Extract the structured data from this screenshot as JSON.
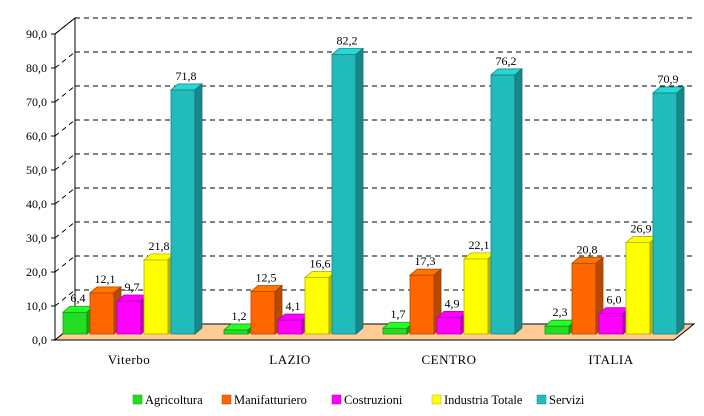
{
  "chart_data": {
    "type": "bar",
    "categories": [
      "Viterbo",
      "LAZIO",
      "CENTRO",
      "ITALIA"
    ],
    "series": [
      {
        "name": "Agricoltura",
        "color": "#22dd22",
        "values": [
          6.4,
          1.2,
          1.7,
          2.3
        ]
      },
      {
        "name": "Manifatturiero",
        "color": "#ff6600",
        "values": [
          12.1,
          12.5,
          17.3,
          20.8
        ]
      },
      {
        "name": "Costruzioni",
        "color": "#ff00ff",
        "values": [
          9.7,
          4.1,
          4.9,
          6.0
        ]
      },
      {
        "name": "Industria Totale",
        "color": "#ffff00",
        "values": [
          21.8,
          16.6,
          22.1,
          26.9
        ]
      },
      {
        "name": "Servizi",
        "color": "#22bbbb",
        "values": [
          71.8,
          82.2,
          76.2,
          70.9
        ]
      }
    ],
    "data_labels": [
      [
        "6,4",
        "1,2",
        "1,7",
        "2,3"
      ],
      [
        "12,1",
        "12,5",
        "17,3",
        "20,8"
      ],
      [
        "9,7",
        "4,1",
        "4,9",
        "6,0"
      ],
      [
        "21,8",
        "16,6",
        "22,1",
        "26,9"
      ],
      [
        "71,8",
        "82,2",
        "76,2",
        "70,9"
      ]
    ],
    "y_ticks": [
      0,
      10,
      20,
      30,
      40,
      50,
      60,
      70,
      80,
      90
    ],
    "y_tick_labels": [
      "0,0",
      "10,0",
      "20,0",
      "30,0",
      "40,0",
      "50,0",
      "60,0",
      "70,0",
      "80,0",
      "90,0"
    ],
    "ylim": [
      0,
      90
    ],
    "title": "",
    "xlabel": "",
    "ylabel": "",
    "grid": true,
    "legend": "bottom",
    "style": "3d",
    "floor_color": "#ffcc99"
  }
}
